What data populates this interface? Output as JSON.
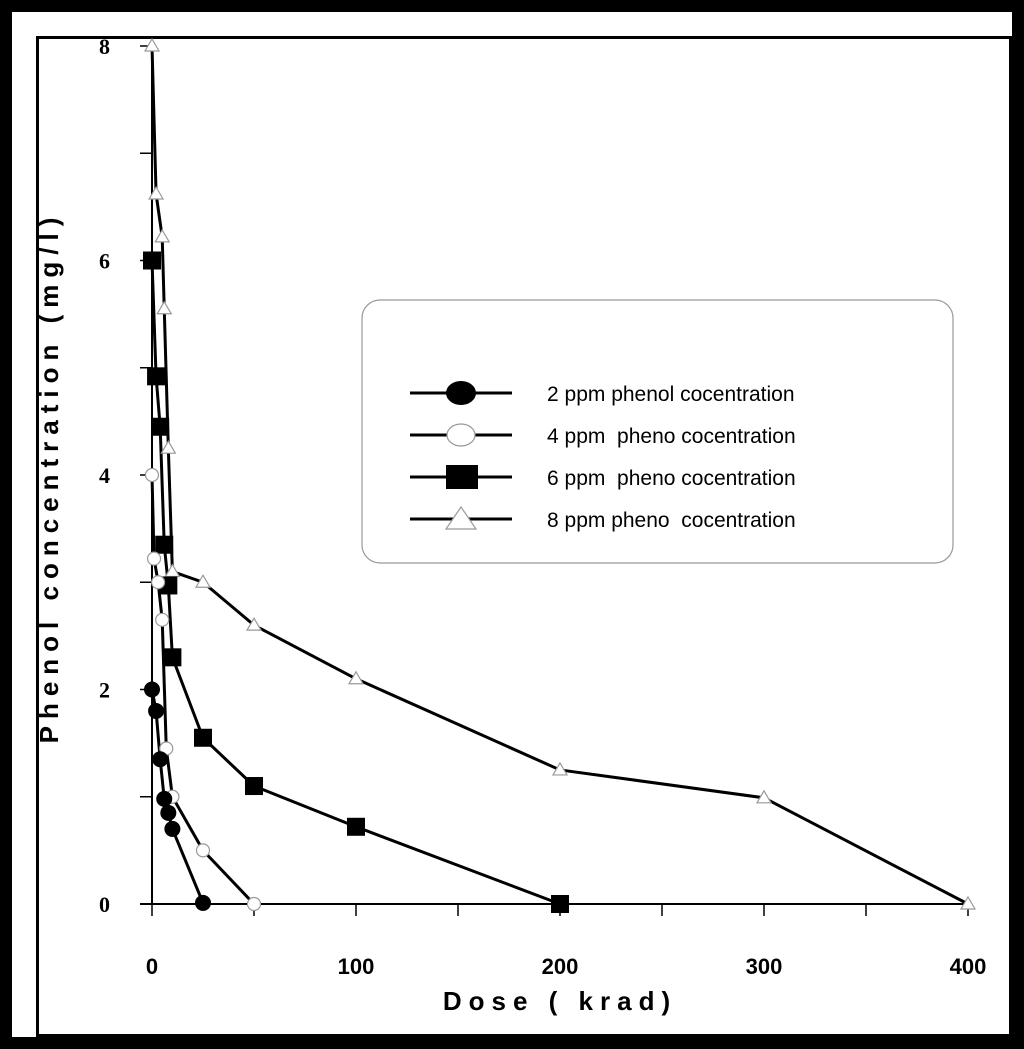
{
  "chart_data": {
    "type": "line",
    "title": "",
    "xlabel": "Dose ( krad)",
    "ylabel": "Phenol concentration (mg/l)",
    "xlim": [
      0,
      400
    ],
    "ylim": [
      0,
      8
    ],
    "xticks": [
      "0",
      "100",
      "200",
      "300",
      "400"
    ],
    "yticks": [
      "0",
      "2",
      "4",
      "6",
      "8"
    ],
    "legend_position": "right-middle",
    "grid": false,
    "series": [
      {
        "name": "2 ppm phenol cocentration",
        "marker": "filled-circle",
        "x": [
          0,
          2,
          4,
          6,
          8,
          10,
          25
        ],
        "y": [
          2.0,
          1.8,
          1.35,
          0.98,
          0.85,
          0.7,
          0.01
        ]
      },
      {
        "name": "4 ppm  pheno cocentration",
        "marker": "open-circle",
        "x": [
          0,
          1,
          3,
          5,
          7,
          10,
          25,
          50
        ],
        "y": [
          4.0,
          3.22,
          3.0,
          2.65,
          1.45,
          1.0,
          0.5,
          0.0
        ]
      },
      {
        "name": "6 ppm  pheno cocentration",
        "marker": "filled-square",
        "x": [
          0,
          2,
          4,
          6,
          8,
          10,
          25,
          50,
          100,
          200
        ],
        "y": [
          6.0,
          4.92,
          4.45,
          3.35,
          2.97,
          2.3,
          1.55,
          1.1,
          0.72,
          0.0
        ]
      },
      {
        "name": "8 ppm pheno  cocentration",
        "marker": "open-triangle",
        "x": [
          0,
          2,
          5,
          6,
          8,
          10,
          25,
          50,
          100,
          200,
          300,
          400
        ],
        "y": [
          8.0,
          6.62,
          6.22,
          5.55,
          4.25,
          3.1,
          3.0,
          2.6,
          2.1,
          1.25,
          0.99,
          0.0
        ]
      }
    ]
  }
}
